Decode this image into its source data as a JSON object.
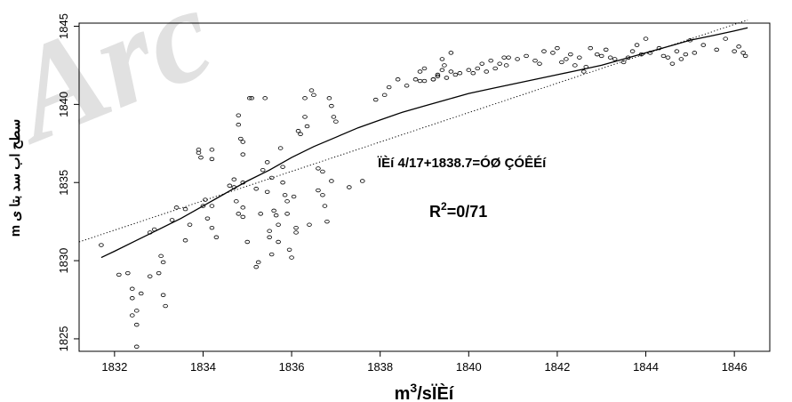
{
  "chart_data": {
    "type": "scatter",
    "xlabel": "m³/sÏÈí",
    "ylabel": "m سطح اب سد بتا ی",
    "xlim": [
      1831.2,
      1846.8
    ],
    "ylim": [
      1824.2,
      1845.2
    ],
    "x_ticks": [
      "1832",
      "1834",
      "1836",
      "1838",
      "1840",
      "1842",
      "1844",
      "1846"
    ],
    "x_tick_values": [
      1832,
      1834,
      1836,
      1838,
      1840,
      1842,
      1844,
      1846
    ],
    "y_ticks": [
      "1825",
      "1830",
      "1835",
      "1840",
      "1845"
    ],
    "y_tick_values": [
      1825,
      1830,
      1835,
      1840,
      1845
    ],
    "equation_text": "ÏÈí  4/17+1838.7=ÓØ  ÇÓÊÉí",
    "r2_prefix": "R",
    "r2_sup": "2",
    "r2_value": "=0/71",
    "watermark": "Arc",
    "points": [
      [
        1831.7,
        1831
      ],
      [
        1832.1,
        1829.1
      ],
      [
        1832.3,
        1829.2
      ],
      [
        1832.4,
        1828.2
      ],
      [
        1832.4,
        1827.6
      ],
      [
        1832.6,
        1827.9
      ],
      [
        1832.4,
        1826.5
      ],
      [
        1832.5,
        1826.8
      ],
      [
        1832.5,
        1825.9
      ],
      [
        1832.5,
        1824.5
      ],
      [
        1832.8,
        1829
      ],
      [
        1832.8,
        1831.8
      ],
      [
        1832.9,
        1832
      ],
      [
        1833,
        1829.2
      ],
      [
        1833.05,
        1830.3
      ],
      [
        1833.1,
        1829.9
      ],
      [
        1833.1,
        1827.8
      ],
      [
        1833.15,
        1827.1
      ],
      [
        1833.3,
        1832.6
      ],
      [
        1833.4,
        1833.4
      ],
      [
        1833.6,
        1831.3
      ],
      [
        1833.6,
        1833.3
      ],
      [
        1833.7,
        1832.3
      ],
      [
        1833.9,
        1836.9
      ],
      [
        1833.9,
        1837.1
      ],
      [
        1833.95,
        1836.6
      ],
      [
        1834,
        1833.5
      ],
      [
        1834.05,
        1833.9
      ],
      [
        1834.1,
        1832.7
      ],
      [
        1834.2,
        1837.1
      ],
      [
        1834.2,
        1836.5
      ],
      [
        1834.2,
        1833.5
      ],
      [
        1834.2,
        1832.1
      ],
      [
        1834.3,
        1831.5
      ],
      [
        1834.6,
        1834.8
      ],
      [
        1834.7,
        1835.2
      ],
      [
        1834.7,
        1834.7
      ],
      [
        1834.75,
        1833.8
      ],
      [
        1834.8,
        1833
      ],
      [
        1834.8,
        1839.3
      ],
      [
        1834.8,
        1838.7
      ],
      [
        1834.85,
        1837.8
      ],
      [
        1834.9,
        1837.6
      ],
      [
        1834.9,
        1836.8
      ],
      [
        1834.9,
        1835
      ],
      [
        1834.9,
        1833.4
      ],
      [
        1834.9,
        1832.8
      ],
      [
        1835,
        1831.2
      ],
      [
        1835.05,
        1840.4
      ],
      [
        1835.1,
        1840.4
      ],
      [
        1835.2,
        1834.6
      ],
      [
        1835.2,
        1829.6
      ],
      [
        1835.25,
        1829.9
      ],
      [
        1835.3,
        1833
      ],
      [
        1835.35,
        1835.8
      ],
      [
        1835.4,
        1840.4
      ],
      [
        1835.45,
        1836.3
      ],
      [
        1835.45,
        1834.4
      ],
      [
        1835.5,
        1831.9
      ],
      [
        1835.5,
        1831.5
      ],
      [
        1835.55,
        1830.4
      ],
      [
        1835.55,
        1835.3
      ],
      [
        1835.6,
        1833.2
      ],
      [
        1835.65,
        1832.9
      ],
      [
        1835.7,
        1832.3
      ],
      [
        1835.7,
        1831.2
      ],
      [
        1835.75,
        1837.2
      ],
      [
        1835.8,
        1836
      ],
      [
        1835.8,
        1835
      ],
      [
        1835.85,
        1834.2
      ],
      [
        1835.9,
        1833.8
      ],
      [
        1835.9,
        1833
      ],
      [
        1835.95,
        1830.7
      ],
      [
        1836,
        1830.2
      ],
      [
        1836.05,
        1834.1
      ],
      [
        1836.1,
        1832.1
      ],
      [
        1836.1,
        1831.8
      ],
      [
        1836.15,
        1838.3
      ],
      [
        1836.2,
        1838.1
      ],
      [
        1836.3,
        1840.4
      ],
      [
        1836.3,
        1839.2
      ],
      [
        1836.35,
        1838.6
      ],
      [
        1836.4,
        1832.3
      ],
      [
        1836.45,
        1840.9
      ],
      [
        1836.5,
        1840.6
      ],
      [
        1836.6,
        1835.9
      ],
      [
        1836.6,
        1834.5
      ],
      [
        1836.7,
        1834.2
      ],
      [
        1836.75,
        1833.5
      ],
      [
        1836.8,
        1832.5
      ],
      [
        1836.85,
        1840.4
      ],
      [
        1836.9,
        1839.9
      ],
      [
        1836.95,
        1839.2
      ],
      [
        1837,
        1838.9
      ],
      [
        1836.7,
        1835.7
      ],
      [
        1836.9,
        1835.1
      ],
      [
        1837.3,
        1834.7
      ],
      [
        1837.6,
        1835.1
      ],
      [
        1837.9,
        1840.3
      ],
      [
        1838.1,
        1840.6
      ],
      [
        1838.2,
        1841.1
      ],
      [
        1838.4,
        1841.6
      ],
      [
        1838.6,
        1841.2
      ],
      [
        1838.8,
        1841.6
      ],
      [
        1838.9,
        1842.1
      ],
      [
        1839,
        1842.3
      ],
      [
        1839.2,
        1841.6
      ],
      [
        1839.3,
        1841.8
      ],
      [
        1839.4,
        1842.9
      ],
      [
        1839.6,
        1843.3
      ],
      [
        1838.9,
        1841.5
      ],
      [
        1839,
        1841.5
      ],
      [
        1839.2,
        1841.6
      ],
      [
        1839.3,
        1841.9
      ],
      [
        1839.4,
        1842.2
      ],
      [
        1839.45,
        1842.5
      ],
      [
        1839.5,
        1841.7
      ],
      [
        1839.6,
        1842.1
      ],
      [
        1839.7,
        1841.9
      ],
      [
        1839.8,
        1842
      ],
      [
        1840,
        1842.2
      ],
      [
        1840.1,
        1842
      ],
      [
        1840.2,
        1842.3
      ],
      [
        1840.3,
        1842.6
      ],
      [
        1840.4,
        1842.1
      ],
      [
        1840.5,
        1842.8
      ],
      [
        1840.6,
        1842.3
      ],
      [
        1840.7,
        1842.6
      ],
      [
        1840.8,
        1843
      ],
      [
        1840.85,
        1842.5
      ],
      [
        1840.9,
        1843
      ],
      [
        1841.1,
        1842.9
      ],
      [
        1841.3,
        1843.1
      ],
      [
        1841.5,
        1842.8
      ],
      [
        1841.6,
        1842.6
      ],
      [
        1841.7,
        1843.4
      ],
      [
        1841.9,
        1843.3
      ],
      [
        1842,
        1843.6
      ],
      [
        1842.1,
        1842.7
      ],
      [
        1842.2,
        1842.9
      ],
      [
        1842.3,
        1843.2
      ],
      [
        1842.4,
        1842.5
      ],
      [
        1842.5,
        1843
      ],
      [
        1842.6,
        1842.1
      ],
      [
        1842.65,
        1842.4
      ],
      [
        1842.75,
        1843.6
      ],
      [
        1842.9,
        1843.2
      ],
      [
        1843,
        1843.1
      ],
      [
        1843.1,
        1843.5
      ],
      [
        1843.2,
        1843
      ],
      [
        1843.3,
        1842.9
      ],
      [
        1843.5,
        1842.7
      ],
      [
        1843.6,
        1843
      ],
      [
        1843.7,
        1843.4
      ],
      [
        1843.8,
        1843.8
      ],
      [
        1843.9,
        1843.2
      ],
      [
        1844,
        1844.2
      ],
      [
        1844.1,
        1843.3
      ],
      [
        1844.3,
        1843.6
      ],
      [
        1844.4,
        1843.1
      ],
      [
        1844.5,
        1843
      ],
      [
        1844.6,
        1842.6
      ],
      [
        1844.7,
        1843.4
      ],
      [
        1844.8,
        1842.9
      ],
      [
        1844.9,
        1843.2
      ],
      [
        1845,
        1844.1
      ],
      [
        1845.1,
        1843.3
      ],
      [
        1845.3,
        1843.8
      ],
      [
        1845.6,
        1843.5
      ],
      [
        1845.8,
        1844.2
      ],
      [
        1846,
        1843.4
      ],
      [
        1846.1,
        1843.7
      ],
      [
        1846.2,
        1843.3
      ],
      [
        1846.25,
        1843.1
      ]
    ],
    "fit_curve": [
      [
        1831.7,
        1830.2
      ],
      [
        1832,
        1830.6
      ],
      [
        1832.5,
        1831.3
      ],
      [
        1833,
        1832
      ],
      [
        1833.5,
        1832.7
      ],
      [
        1834,
        1833.5
      ],
      [
        1834.5,
        1834.3
      ],
      [
        1835,
        1835.1
      ],
      [
        1835.5,
        1835.8
      ],
      [
        1836,
        1836.6
      ],
      [
        1836.5,
        1837.3
      ],
      [
        1837,
        1837.9
      ],
      [
        1837.5,
        1838.5
      ],
      [
        1838,
        1839
      ],
      [
        1838.5,
        1839.5
      ],
      [
        1839,
        1839.9
      ],
      [
        1839.5,
        1840.3
      ],
      [
        1840,
        1840.7
      ],
      [
        1840.5,
        1841
      ],
      [
        1841,
        1841.3
      ],
      [
        1841.5,
        1841.6
      ],
      [
        1842,
        1841.9
      ],
      [
        1842.5,
        1842.2
      ],
      [
        1843,
        1842.5
      ],
      [
        1843.5,
        1842.9
      ],
      [
        1844,
        1843.3
      ],
      [
        1844.5,
        1843.7
      ],
      [
        1845,
        1844.1
      ],
      [
        1845.5,
        1844.4
      ],
      [
        1846,
        1844.7
      ],
      [
        1846.3,
        1844.9
      ]
    ],
    "linear_fit": [
      [
        1831.2,
        1831.2
      ],
      [
        1846.3,
        1845.4
      ]
    ]
  }
}
